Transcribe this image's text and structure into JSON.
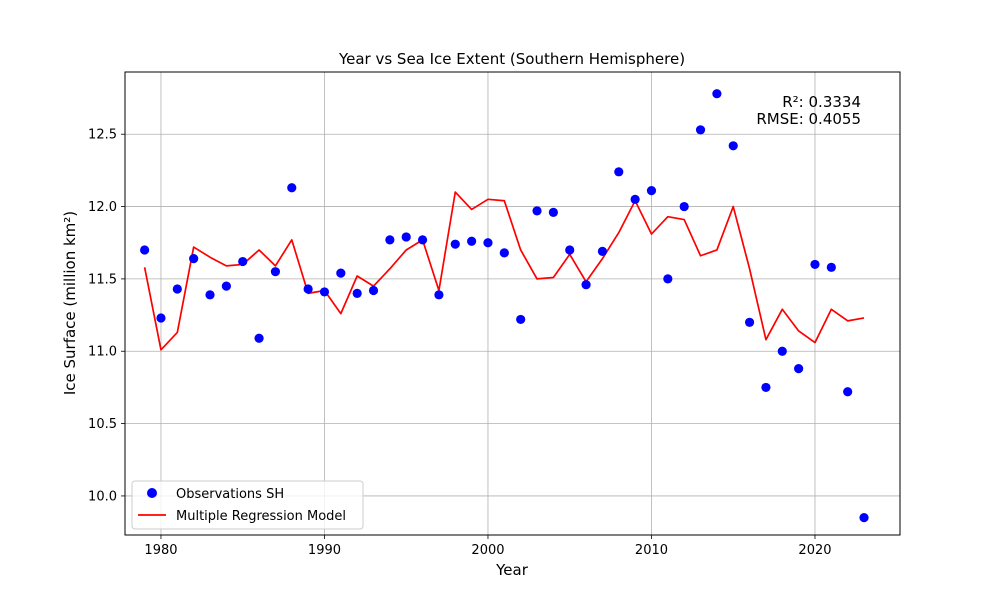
{
  "chart_data": {
    "type": "scatter",
    "title": "Year vs Sea Ice Extent (Southern Hemisphere)",
    "xlabel": "Year",
    "ylabel": "Ice Surface (million km²)",
    "xlim": [
      1977.8,
      2025.2
    ],
    "ylim": [
      9.73,
      12.93
    ],
    "x_ticks": [
      1980,
      1990,
      2000,
      2010,
      2020
    ],
    "y_ticks": [
      10.0,
      10.5,
      11.0,
      11.5,
      12.0,
      12.5
    ],
    "grid": true,
    "legend_position": "lower-left",
    "annotations": [
      "R²: 0.3334",
      "RMSE: 0.4055"
    ],
    "series": [
      {
        "name": "Observations SH",
        "kind": "scatter",
        "color": "#0000ff",
        "x": [
          1979,
          1980,
          1981,
          1982,
          1983,
          1984,
          1985,
          1986,
          1987,
          1988,
          1989,
          1990,
          1991,
          1992,
          1993,
          1994,
          1995,
          1996,
          1997,
          1998,
          1999,
          2000,
          2001,
          2002,
          2003,
          2004,
          2005,
          2006,
          2007,
          2008,
          2009,
          2010,
          2011,
          2012,
          2013,
          2014,
          2015,
          2016,
          2017,
          2018,
          2019,
          2020,
          2021,
          2022,
          2023
        ],
        "y": [
          11.7,
          11.23,
          11.43,
          11.64,
          11.39,
          11.45,
          11.62,
          11.09,
          11.55,
          12.13,
          11.43,
          11.41,
          11.54,
          11.4,
          11.42,
          11.77,
          11.79,
          11.77,
          11.39,
          11.74,
          11.76,
          11.75,
          11.68,
          11.22,
          11.97,
          11.96,
          11.7,
          11.46,
          11.69,
          12.24,
          12.05,
          12.11,
          11.5,
          12.0,
          12.53,
          12.78,
          12.42,
          11.2,
          10.75,
          11.0,
          10.88,
          11.6,
          11.58,
          10.72,
          9.85
        ]
      },
      {
        "name": "Multiple Regression Model",
        "kind": "line",
        "color": "#ff0000",
        "x": [
          1979,
          1980,
          1981,
          1982,
          1983,
          1984,
          1985,
          1986,
          1987,
          1988,
          1989,
          1990,
          1991,
          1992,
          1993,
          1994,
          1995,
          1996,
          1997,
          1998,
          1999,
          2000,
          2001,
          2002,
          2003,
          2004,
          2005,
          2006,
          2007,
          2008,
          2009,
          2010,
          2011,
          2012,
          2013,
          2014,
          2015,
          2016,
          2017,
          2018,
          2019,
          2020,
          2021,
          2022,
          2023
        ],
        "y": [
          11.58,
          11.01,
          11.13,
          11.72,
          11.65,
          11.59,
          11.6,
          11.7,
          11.59,
          11.77,
          11.4,
          11.42,
          11.26,
          11.52,
          11.45,
          11.57,
          11.7,
          11.77,
          11.42,
          12.1,
          11.98,
          12.05,
          12.04,
          11.7,
          11.5,
          11.51,
          11.67,
          11.48,
          11.64,
          11.82,
          12.04,
          11.81,
          11.93,
          11.91,
          11.66,
          11.7,
          12.0,
          11.57,
          11.08,
          11.29,
          11.14,
          11.06,
          11.29,
          11.21,
          11.23
        ]
      }
    ]
  }
}
